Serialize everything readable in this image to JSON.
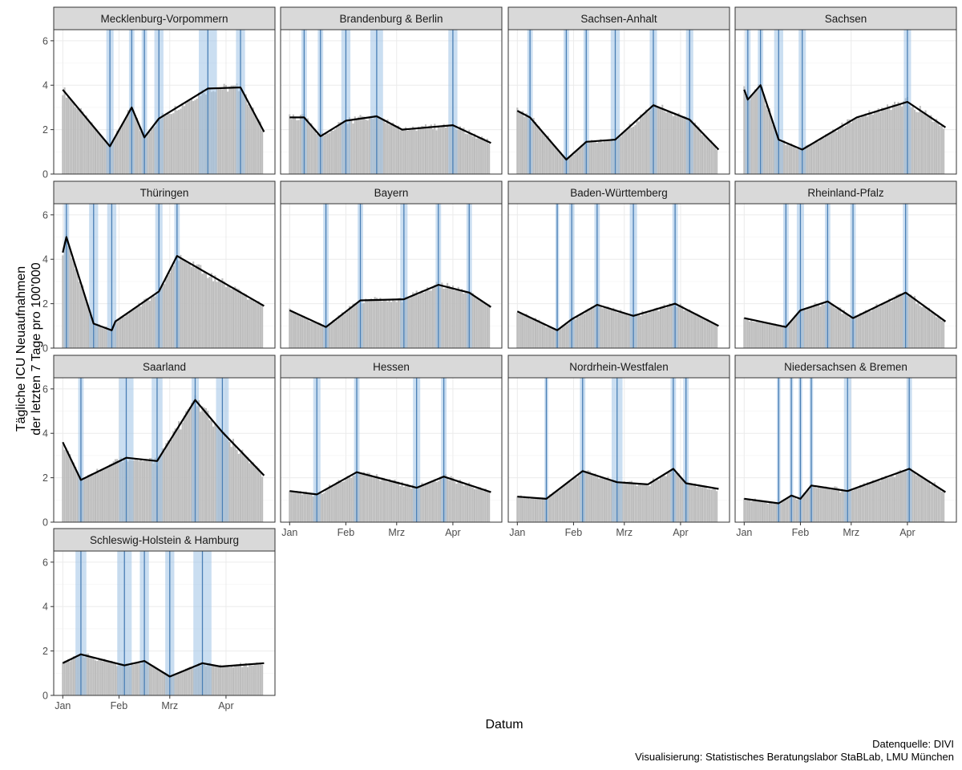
{
  "chart_data": {
    "type": "bar",
    "layout": "facet-grid",
    "facet_columns": 4,
    "ylabel": "Tägliche ICU Neuaufnahmen\nder letzten 7 Tage pro 100'000",
    "xlabel": "Datum",
    "ylim": [
      0,
      6.5
    ],
    "y_ticks": [
      0,
      2,
      4,
      6
    ],
    "x_ticks": [
      {
        "day": 0,
        "label": "Jan"
      },
      {
        "day": 31,
        "label": "Feb"
      },
      {
        "day": 59,
        "label": "Mrz"
      },
      {
        "day": 90,
        "label": "Apr"
      }
    ],
    "x_range_days": [
      -5,
      117
    ],
    "n_days": 111,
    "grid": true,
    "series_encoding": [
      "bars: daily values (gray)",
      "line: fitted segmented trend (black)",
      "bands: breakpoint intervals (blue)"
    ],
    "colors": {
      "bar": "#bdbdbd",
      "line": "#000000",
      "band": "#9ec3e6",
      "breakpoint": "#4a7fb5",
      "strip": "#d9d9d9",
      "strip_border": "#333333",
      "grid": "#ebebeb"
    },
    "facets": [
      {
        "name": "Mecklenburg-Vorpommern",
        "x": [
          0,
          26,
          38,
          45,
          53,
          80,
          98,
          111
        ],
        "y": [
          3.8,
          1.25,
          3.0,
          1.65,
          2.5,
          3.85,
          3.9,
          1.9
        ],
        "breakpoints": [
          26,
          38,
          45,
          53,
          80,
          98
        ],
        "band_half_widths": [
          2,
          1.5,
          1.5,
          2.5,
          5,
          2.5
        ]
      },
      {
        "name": "Brandenburg & Berlin",
        "x": [
          0,
          8,
          17,
          31,
          48,
          62,
          90,
          111
        ],
        "y": [
          2.55,
          2.55,
          1.7,
          2.4,
          2.6,
          2.0,
          2.2,
          1.4
        ],
        "breakpoints": [
          8,
          17,
          31,
          48,
          90
        ],
        "band_half_widths": [
          1.5,
          1.5,
          2.5,
          3.5,
          2.5
        ]
      },
      {
        "name": "Sachsen-Anhalt",
        "x": [
          0,
          7,
          27,
          38,
          54,
          75,
          95,
          111
        ],
        "y": [
          2.85,
          2.55,
          0.65,
          1.45,
          1.55,
          3.1,
          2.45,
          1.1
        ],
        "breakpoints": [
          7,
          27,
          38,
          54,
          75,
          95
        ],
        "band_half_widths": [
          1.5,
          1.5,
          1.5,
          2.5,
          2,
          2
        ]
      },
      {
        "name": "Sachsen",
        "x": [
          0,
          2,
          9,
          19,
          32,
          62,
          90,
          111
        ],
        "y": [
          3.8,
          3.35,
          4.0,
          1.55,
          1.1,
          2.55,
          3.25,
          2.1
        ],
        "breakpoints": [
          2,
          9,
          19,
          32,
          90
        ],
        "band_half_widths": [
          1.5,
          1.5,
          2.5,
          2,
          2
        ]
      },
      {
        "name": "Thüringen",
        "x": [
          0,
          2,
          17,
          27,
          29,
          53,
          63,
          111
        ],
        "y": [
          4.3,
          5.0,
          1.1,
          0.8,
          1.2,
          2.55,
          4.15,
          1.9
        ],
        "breakpoints": [
          2,
          17,
          27,
          53,
          63
        ],
        "band_half_widths": [
          1.5,
          2.5,
          2.5,
          2,
          1.5
        ]
      },
      {
        "name": "Bayern",
        "x": [
          0,
          20,
          39,
          63,
          82,
          99,
          111
        ],
        "y": [
          1.7,
          0.95,
          2.15,
          2.2,
          2.85,
          2.5,
          1.85
        ],
        "breakpoints": [
          20,
          39,
          63,
          82,
          99
        ],
        "band_half_widths": [
          1.5,
          1.5,
          2,
          1.5,
          1.5
        ]
      },
      {
        "name": "Baden-Württemberg",
        "x": [
          0,
          22,
          30,
          44,
          64,
          87,
          111
        ],
        "y": [
          1.65,
          0.8,
          1.3,
          1.95,
          1.45,
          2.0,
          1.0
        ],
        "breakpoints": [
          22,
          30,
          44,
          64,
          87
        ],
        "band_half_widths": [
          1,
          1.5,
          1.5,
          2,
          1.5
        ]
      },
      {
        "name": "Rheinland-Pfalz",
        "x": [
          0,
          23,
          31,
          46,
          60,
          89,
          111
        ],
        "y": [
          1.35,
          0.95,
          1.7,
          2.1,
          1.35,
          2.5,
          1.2
        ],
        "breakpoints": [
          23,
          31,
          46,
          60,
          89
        ],
        "band_half_widths": [
          1.5,
          2,
          1.5,
          1.5,
          1.5
        ]
      },
      {
        "name": "Saarland",
        "x": [
          0,
          10,
          35,
          52,
          73,
          88,
          111
        ],
        "y": [
          3.6,
          1.9,
          2.9,
          2.75,
          5.5,
          4.05,
          2.1
        ],
        "breakpoints": [
          10,
          35,
          52,
          73,
          88
        ],
        "band_half_widths": [
          1.5,
          4,
          3,
          2,
          3.5
        ]
      },
      {
        "name": "Hessen",
        "x": [
          0,
          15,
          37,
          70,
          85,
          111
        ],
        "y": [
          1.4,
          1.25,
          2.25,
          1.55,
          2.05,
          1.35
        ],
        "breakpoints": [
          15,
          37,
          70,
          85
        ],
        "band_half_widths": [
          2,
          1.5,
          2,
          1.5
        ]
      },
      {
        "name": "Nordrhein-Westfalen",
        "x": [
          0,
          16,
          36,
          55,
          72,
          86,
          93,
          111
        ],
        "y": [
          1.15,
          1.05,
          2.3,
          1.8,
          1.7,
          2.4,
          1.75,
          1.5
        ],
        "breakpoints": [
          16,
          36,
          55,
          86,
          93
        ],
        "band_half_widths": [
          1,
          1.5,
          3,
          1.5,
          1.5
        ]
      },
      {
        "name": "Niedersachsen & Bremen",
        "x": [
          0,
          19,
          26,
          31,
          37,
          57,
          91,
          111
        ],
        "y": [
          1.05,
          0.85,
          1.2,
          1.05,
          1.65,
          1.4,
          2.4,
          1.35
        ],
        "breakpoints": [
          19,
          26,
          31,
          37,
          57,
          91
        ],
        "band_half_widths": [
          1,
          1,
          1,
          1,
          2,
          1.5
        ]
      },
      {
        "name": "Schleswig-Holstein & Hamburg",
        "x": [
          0,
          10,
          34,
          45,
          59,
          77,
          87,
          111
        ],
        "y": [
          1.45,
          1.85,
          1.35,
          1.55,
          0.85,
          1.45,
          1.3,
          1.45
        ],
        "breakpoints": [
          10,
          34,
          45,
          59,
          77
        ],
        "band_half_widths": [
          3,
          4,
          2.5,
          2.5,
          5
        ]
      }
    ]
  },
  "caption": {
    "source": "Datenquelle: DIVI",
    "visualization": "Visualisierung: Statistisches Beratungslabor StaBLab, LMU München"
  }
}
